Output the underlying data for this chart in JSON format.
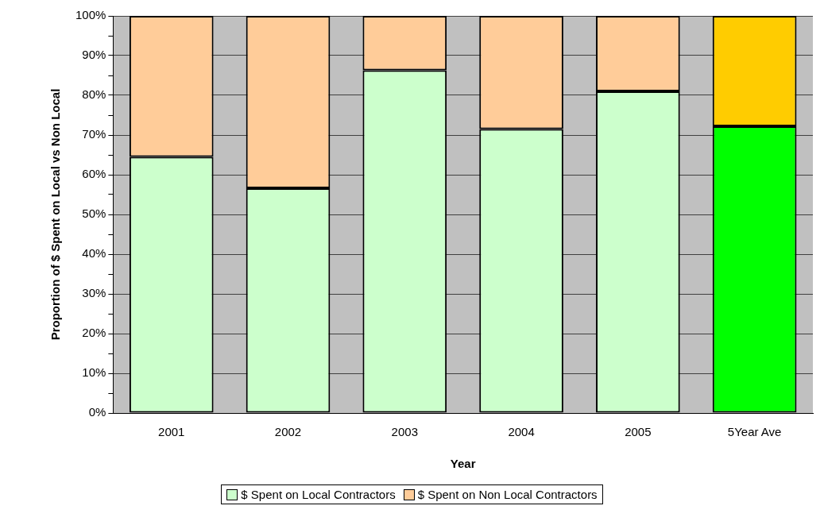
{
  "chart_data": {
    "type": "bar",
    "stacked": true,
    "xlabel": "Year",
    "ylabel": "Proportion of $ Spent on Local vs Non Local",
    "categories": [
      "2001",
      "2002",
      "2003",
      "2004",
      "2005",
      "5Year Ave"
    ],
    "series": [
      {
        "name": "$ Spent on Local Contractors",
        "color": "#ccffcc",
        "colors": [
          "#ccffcc",
          "#ccffcc",
          "#ccffcc",
          "#ccffcc",
          "#ccffcc",
          "#00ff00"
        ],
        "values": [
          64.5,
          56.6,
          86.3,
          71.5,
          81.0,
          72.2
        ]
      },
      {
        "name": "$ Spent on Non Local Contractors",
        "color": "#ffcc99",
        "colors": [
          "#ffcc99",
          "#ffcc99",
          "#ffcc99",
          "#ffcc99",
          "#ffcc99",
          "#ffcc00"
        ],
        "values": [
          35.5,
          43.4,
          13.7,
          28.5,
          19.0,
          27.8
        ]
      }
    ],
    "ylim": [
      0,
      100
    ],
    "yticks": [
      {
        "value": 0,
        "label": "0%"
      },
      {
        "value": 5,
        "label": null
      },
      {
        "value": 10,
        "label": "10%"
      },
      {
        "value": 15,
        "label": null
      },
      {
        "value": 20,
        "label": "20%"
      },
      {
        "value": 25,
        "label": null
      },
      {
        "value": 30,
        "label": "30%"
      },
      {
        "value": 35,
        "label": null
      },
      {
        "value": 40,
        "label": "40%"
      },
      {
        "value": 45,
        "label": null
      },
      {
        "value": 50,
        "label": "50%"
      },
      {
        "value": 55,
        "label": null
      },
      {
        "value": 60,
        "label": "60%"
      },
      {
        "value": 65,
        "label": null
      },
      {
        "value": 70,
        "label": "70%"
      },
      {
        "value": 75,
        "label": null
      },
      {
        "value": 80,
        "label": "80%"
      },
      {
        "value": 85,
        "label": null
      },
      {
        "value": 90,
        "label": "90%"
      },
      {
        "value": 95,
        "label": null
      },
      {
        "value": 100,
        "label": "100%"
      }
    ],
    "grid": "y",
    "legend": "bottom"
  }
}
